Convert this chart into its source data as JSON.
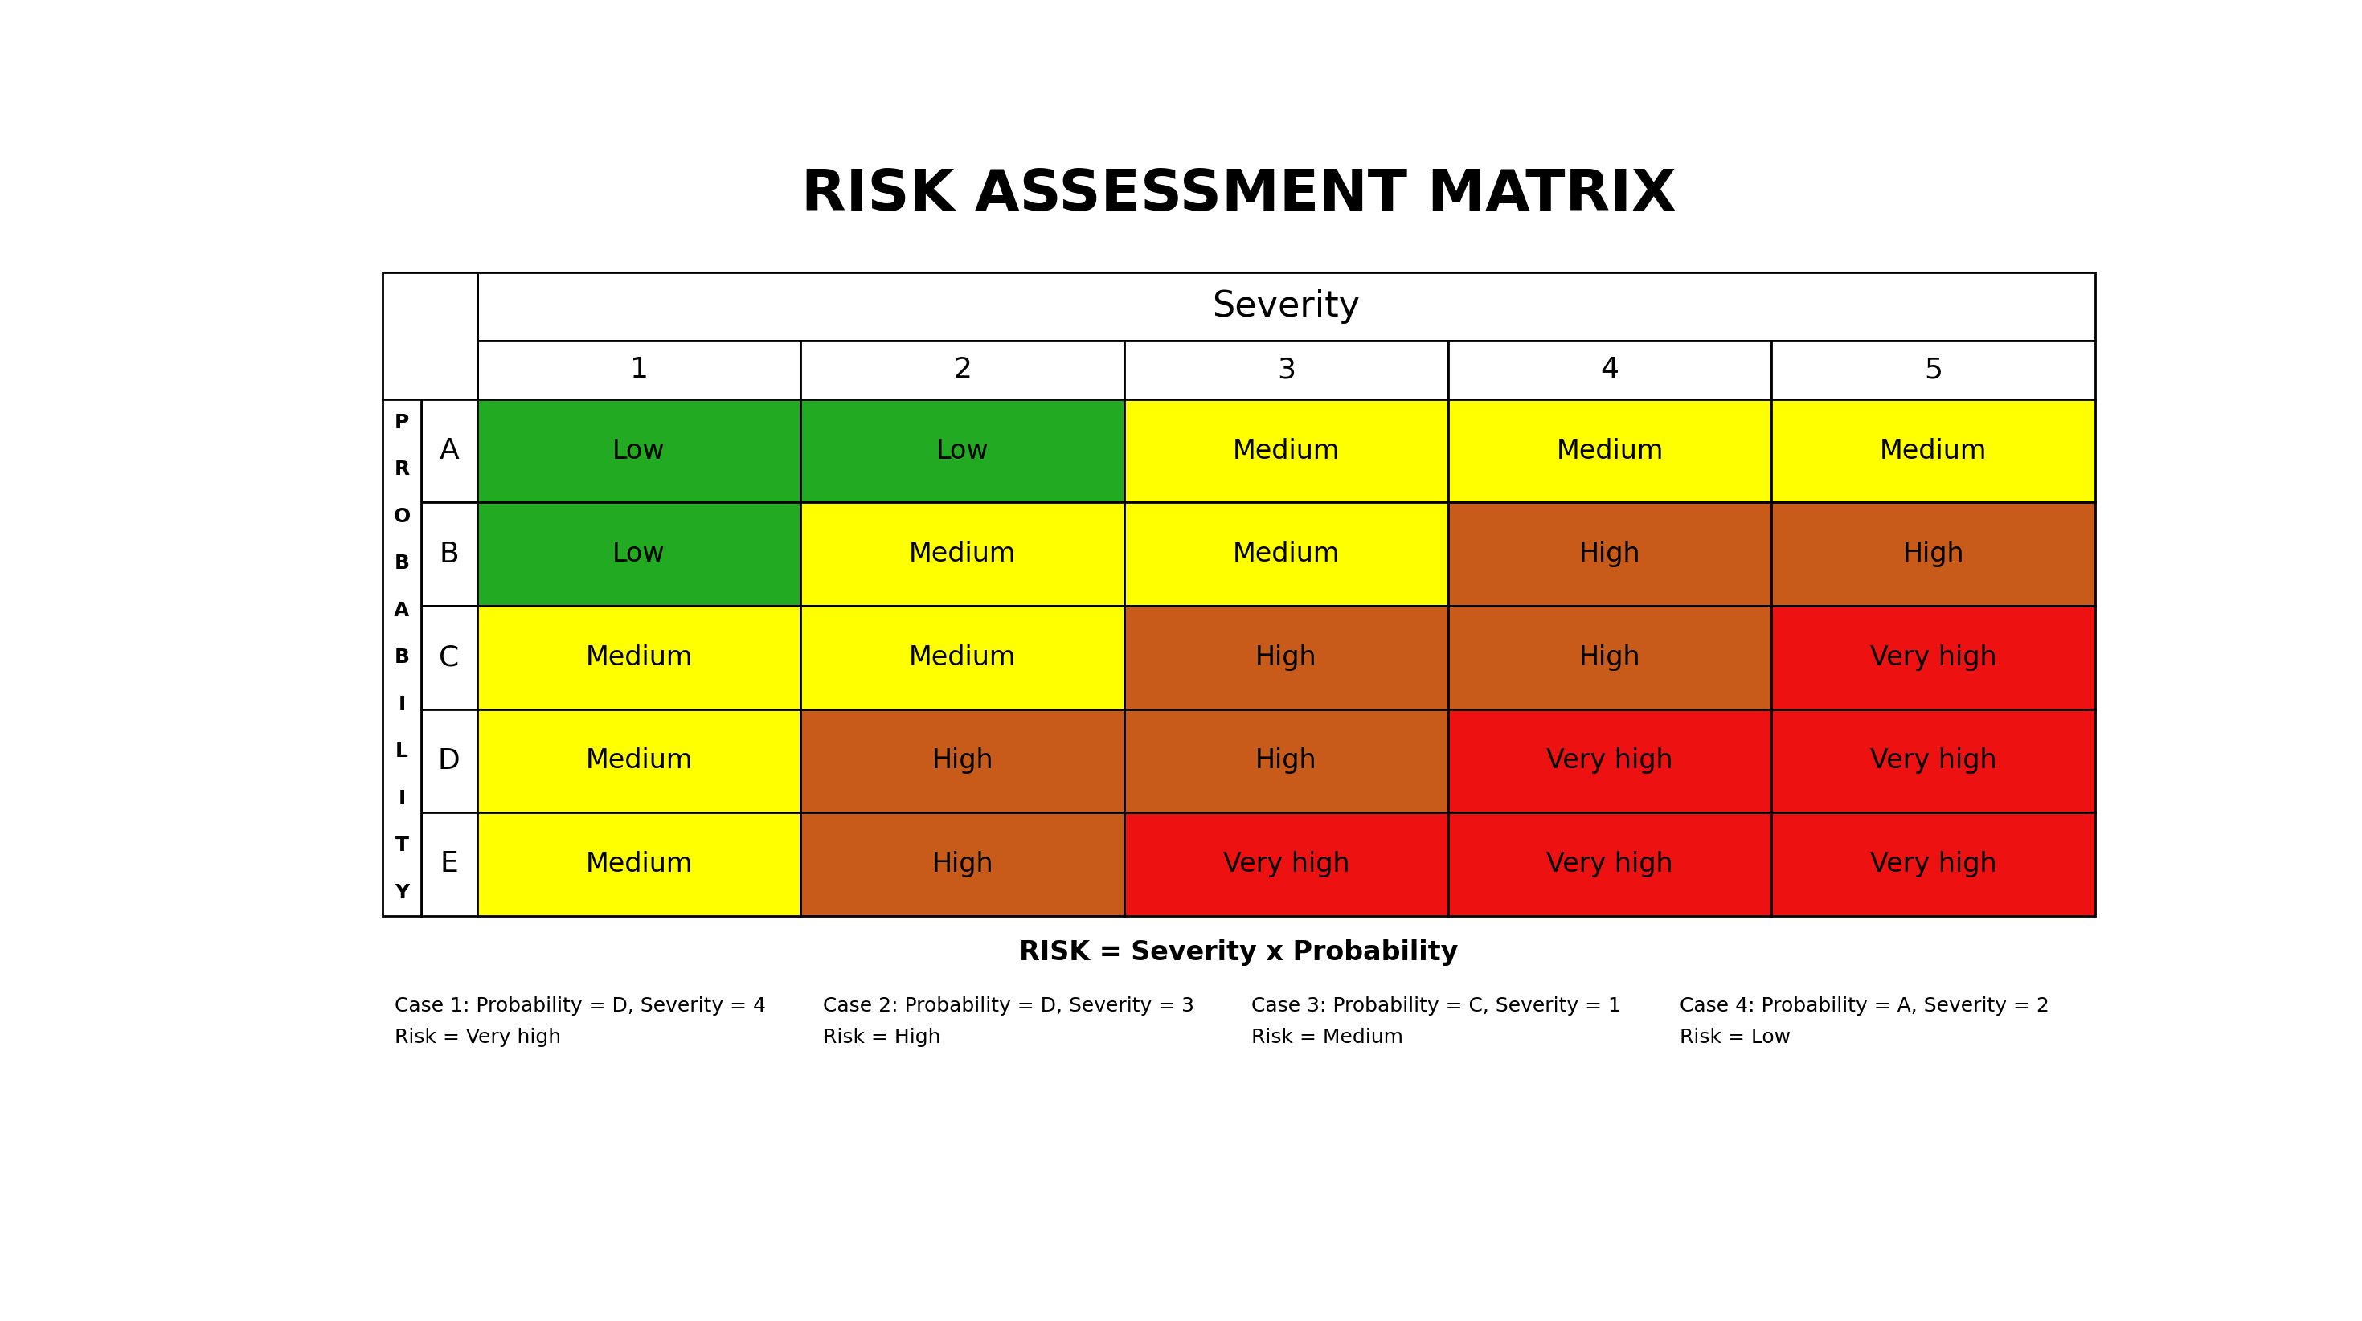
{
  "title": "RISK ASSESSMENT MATRIX",
  "severity_label": "Severity",
  "probability_label": "P\nR\nO\nB\nA\nB\nI\nL\nI\nT\nY",
  "severity_cols": [
    "1",
    "2",
    "3",
    "4",
    "5"
  ],
  "probability_rows": [
    "A",
    "B",
    "C",
    "D",
    "E"
  ],
  "matrix": [
    [
      "Low",
      "Low",
      "Medium",
      "Medium",
      "Medium"
    ],
    [
      "Low",
      "Medium",
      "Medium",
      "High",
      "High"
    ],
    [
      "Medium",
      "Medium",
      "High",
      "High",
      "Very high"
    ],
    [
      "Medium",
      "High",
      "High",
      "Very high",
      "Very high"
    ],
    [
      "Medium",
      "High",
      "Very high",
      "Very high",
      "Very high"
    ]
  ],
  "colors": {
    "Low": "#22aa22",
    "Medium": "#ffff00",
    "High": "#c85a1a",
    "Very high": "#ee1111"
  },
  "footer_formula": "RISK = Severity x Probability",
  "cases": [
    "Case 1: Probability = D, Severity = 4\nRisk = Very high",
    "Case 2: Probability = D, Severity = 3\nRisk = High",
    "Case 3: Probability = C, Severity = 1\nRisk = Medium",
    "Case 4: Probability = A, Severity = 2\nRisk = Low"
  ],
  "background_color": "#ffffff",
  "cell_text_fontsize": 24,
  "header_fontsize": 26,
  "severity_header_fontsize": 32,
  "title_fontsize": 52,
  "prob_letter_fontsize": 18,
  "row_label_fontsize": 26,
  "footer_fontsize": 24,
  "case_fontsize": 18
}
